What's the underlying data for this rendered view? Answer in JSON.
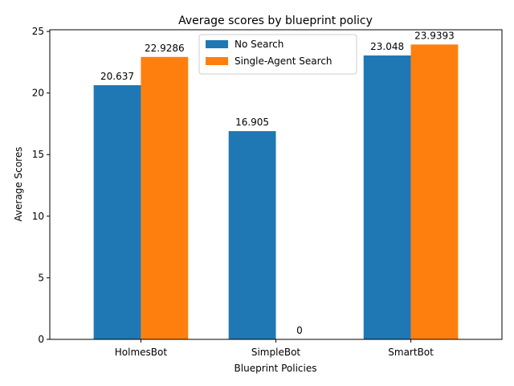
{
  "chart_data": {
    "type": "bar",
    "title": "Average scores by blueprint policy",
    "xlabel": "Blueprint Policies",
    "ylabel": "Average Scores",
    "categories": [
      "HolmesBot",
      "SimpleBot",
      "SmartBot"
    ],
    "series": [
      {
        "name": "No Search",
        "values": [
          20.637,
          16.905,
          23.048
        ],
        "labels": [
          "20.637",
          "16.905",
          "23.048"
        ],
        "color": "#1f77b4"
      },
      {
        "name": "Single-Agent Search",
        "values": [
          22.9286,
          0,
          23.9393
        ],
        "labels": [
          "22.9286",
          "0",
          "23.9393"
        ],
        "color": "#ff7f0e"
      }
    ],
    "ylim": [
      0,
      25.136
    ],
    "yticks": [
      0,
      5,
      10,
      15,
      20,
      25
    ],
    "grid": false,
    "legend_position": "top-center"
  }
}
